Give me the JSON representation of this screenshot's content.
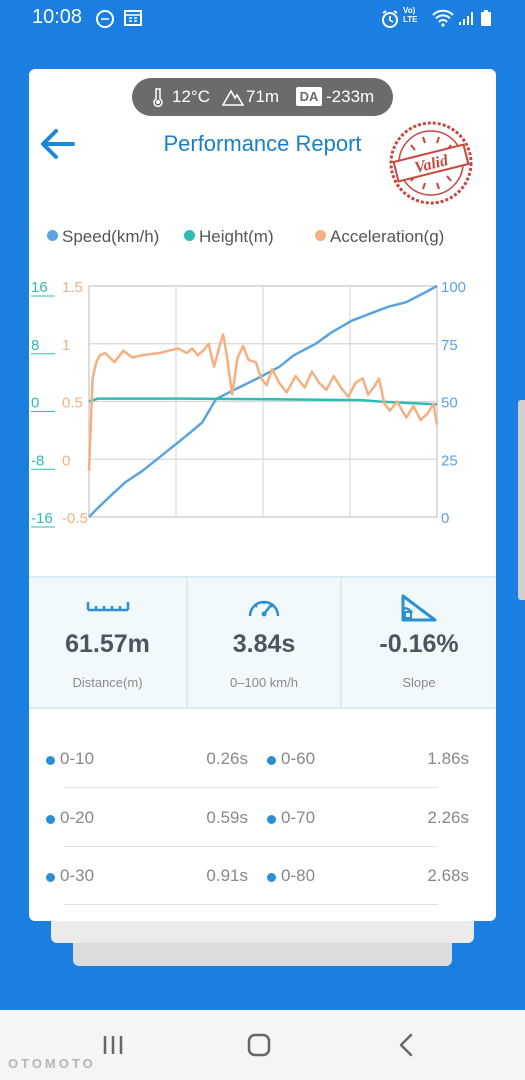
{
  "status_bar": {
    "time": "10:08",
    "net_top": "Vo)",
    "net_bottom": "LTE"
  },
  "environment": {
    "temperature": "12°C",
    "altitude": "71m",
    "density_altitude_badge": "DA",
    "density_altitude": "-233m"
  },
  "header": {
    "title": "Performance Report",
    "stamp_text": "Valid"
  },
  "legend": [
    {
      "label": "Speed(km/h)",
      "color": "#5aa3df"
    },
    {
      "label": "Height(m)",
      "color": "#2dbdb1"
    },
    {
      "label": "Acceleration(g)",
      "color": "#f4b081"
    }
  ],
  "chart_data": {
    "type": "line",
    "x_range": [
      0,
      3.84
    ],
    "axes": {
      "height": {
        "ticks": [
          "16",
          "8",
          "0",
          "-8",
          "-16"
        ],
        "range": [
          -16,
          16
        ],
        "color": "#2dbdb1"
      },
      "acceleration": {
        "ticks": [
          "1.5",
          "1",
          "0.5",
          "0",
          "-0.5"
        ],
        "range": [
          -0.5,
          1.5
        ],
        "color": "#f4b081"
      },
      "speed": {
        "ticks": [
          "100",
          "75",
          "50",
          "25",
          "0"
        ],
        "range": [
          0,
          100
        ],
        "color": "#5aa3df"
      }
    },
    "grid": true,
    "series": [
      {
        "name": "Speed(km/h)",
        "axis": "speed",
        "color": "#5aa3df",
        "x": [
          0,
          0.1,
          0.26,
          0.4,
          0.59,
          0.91,
          1.1,
          1.25,
          1.4,
          1.6,
          1.86,
          2.1,
          2.26,
          2.5,
          2.68,
          2.9,
          3.1,
          3.3,
          3.5,
          3.7,
          3.84
        ],
        "y": [
          0,
          4,
          10,
          15,
          20,
          30,
          36,
          41,
          51,
          55,
          60,
          65,
          70,
          75,
          80,
          85,
          88,
          91,
          93,
          97,
          100
        ]
      },
      {
        "name": "Height(m)",
        "axis": "height",
        "color": "#2dbdb1",
        "x": [
          0,
          0.1,
          1.0,
          2.0,
          3.0,
          3.2,
          3.5,
          3.84
        ],
        "y": [
          0,
          0.4,
          0.4,
          0.3,
          0.2,
          0,
          -0.2,
          -0.4
        ]
      },
      {
        "name": "Acceleration(g)",
        "axis": "acceleration",
        "color": "#f4b081",
        "x": [
          0,
          0.04,
          0.08,
          0.12,
          0.18,
          0.28,
          0.38,
          0.48,
          0.58,
          0.68,
          0.78,
          0.88,
          0.98,
          1.08,
          1.14,
          1.2,
          1.26,
          1.32,
          1.38,
          1.44,
          1.48,
          1.52,
          1.58,
          1.64,
          1.7,
          1.76,
          1.84,
          1.9,
          1.96,
          2.02,
          2.1,
          2.18,
          2.28,
          2.38,
          2.46,
          2.54,
          2.62,
          2.7,
          2.78,
          2.86,
          2.94,
          3.02,
          3.08,
          3.14,
          3.2,
          3.26,
          3.32,
          3.4,
          3.5,
          3.58,
          3.66,
          3.74,
          3.8,
          3.84
        ],
        "y": [
          -0.1,
          0.7,
          0.84,
          0.9,
          0.92,
          0.84,
          0.94,
          0.88,
          0.9,
          0.91,
          0.92,
          0.94,
          0.96,
          0.92,
          0.96,
          0.9,
          0.94,
          1.0,
          0.8,
          0.98,
          1.08,
          0.9,
          0.56,
          0.88,
          0.98,
          0.86,
          0.84,
          0.7,
          0.64,
          0.78,
          0.66,
          0.58,
          0.72,
          0.62,
          0.76,
          0.66,
          0.6,
          0.72,
          0.62,
          0.54,
          0.66,
          0.7,
          0.56,
          0.62,
          0.7,
          0.48,
          0.42,
          0.5,
          0.36,
          0.46,
          0.34,
          0.4,
          0.48,
          0.3
        ]
      }
    ]
  },
  "stats": [
    {
      "value": "61.57m",
      "label": "Distance(m)",
      "icon": "ruler-icon"
    },
    {
      "value": "3.84s",
      "label": "0–100 km/h",
      "icon": "speedometer-icon"
    },
    {
      "value": "-0.16%",
      "label": "Slope",
      "icon": "slope-icon"
    }
  ],
  "splits": [
    {
      "name": "0-10",
      "time": "0.26s"
    },
    {
      "name": "0-60",
      "time": "1.86s"
    },
    {
      "name": "0-20",
      "time": "0.59s"
    },
    {
      "name": "0-70",
      "time": "2.26s"
    },
    {
      "name": "0-30",
      "time": "0.91s"
    },
    {
      "name": "0-80",
      "time": "2.68s"
    }
  ],
  "watermark": "OTOMOTO"
}
